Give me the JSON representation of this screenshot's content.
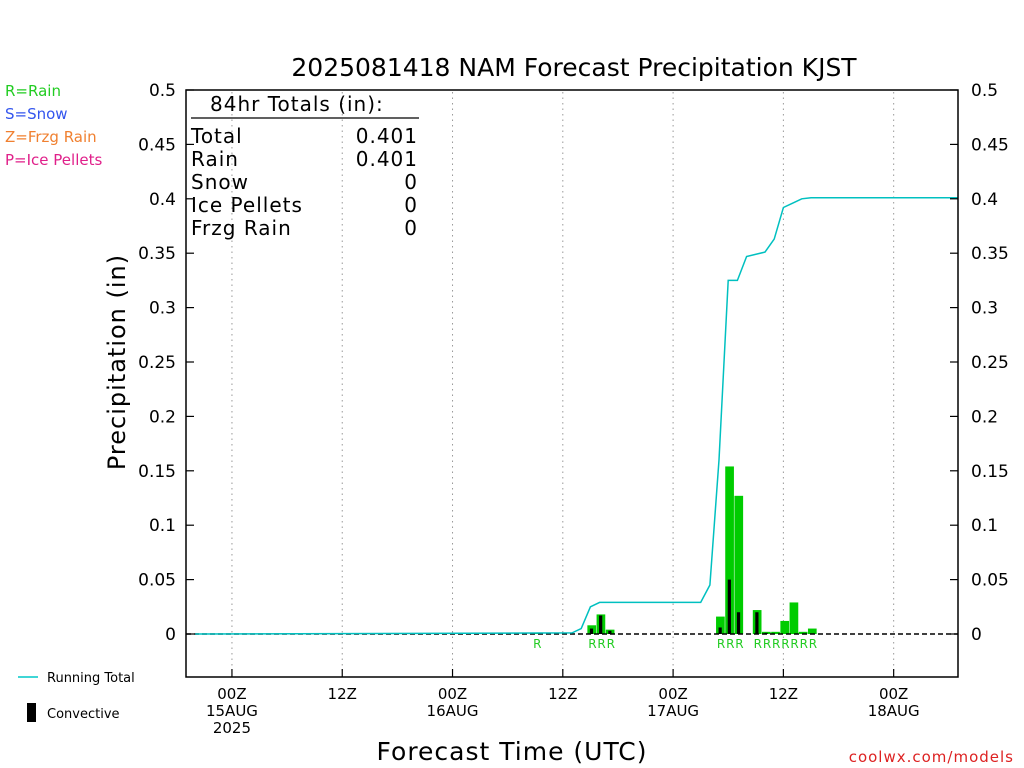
{
  "chart_data": {
    "type": "bar",
    "title": "2025081418 NAM Forecast Precipitation KJST",
    "xlabel": "Forecast Time (UTC)",
    "ylabel": "Precipitation (in)",
    "ylim": [
      0,
      0.5
    ],
    "x_hours_range": [
      -5,
      79
    ],
    "y_ticks": [
      "0",
      "0.05",
      "0.1",
      "0.15",
      "0.2",
      "0.25",
      "0.3",
      "0.35",
      "0.4",
      "0.45",
      "0.5"
    ],
    "x_ticks": [
      {
        "hour": 0,
        "lines": [
          "00Z",
          "15AUG",
          "2025"
        ]
      },
      {
        "hour": 12,
        "lines": [
          "12Z"
        ]
      },
      {
        "hour": 24,
        "lines": [
          "00Z",
          "16AUG"
        ]
      },
      {
        "hour": 36,
        "lines": [
          "12Z"
        ]
      },
      {
        "hour": 48,
        "lines": [
          "00Z",
          "17AUG"
        ]
      },
      {
        "hour": 60,
        "lines": [
          "12Z"
        ]
      },
      {
        "hour": 72,
        "lines": [
          "00Z",
          "18AUG"
        ]
      }
    ],
    "grid": "vertical dotted at each tick",
    "legend_top": [
      {
        "label": "R=Rain",
        "color": "#22cc22"
      },
      {
        "label": "S=Snow",
        "color": "#3355ee"
      },
      {
        "label": "Z=Frzg Rain",
        "color": "#f08030"
      },
      {
        "label": "P=Ice Pellets",
        "color": "#e0208a"
      }
    ],
    "legend_bottom": [
      {
        "label": "Running Total",
        "color": "#00c8c8",
        "symbol": "line"
      },
      {
        "label": "Convective",
        "color": "#000000",
        "symbol": "bar"
      }
    ],
    "totals": {
      "header": "84hr Totals (in):",
      "rows": [
        {
          "label": "Total",
          "value": "0.401"
        },
        {
          "label": "Rain",
          "value": "0.401"
        },
        {
          "label": "Snow",
          "value": "0"
        },
        {
          "label": "Ice Pellets",
          "value": "0"
        },
        {
          "label": "Frzg Rain",
          "value": "0"
        }
      ]
    },
    "series": [
      {
        "name": "Precipitation",
        "color": "#00cc00",
        "bars": [
          {
            "hour": 33,
            "value": 0.001
          },
          {
            "hour": 39,
            "value": 0.008
          },
          {
            "hour": 40,
            "value": 0.018
          },
          {
            "hour": 41,
            "value": 0.004
          },
          {
            "hour": 53,
            "value": 0.016
          },
          {
            "hour": 54,
            "value": 0.154
          },
          {
            "hour": 55,
            "value": 0.127
          },
          {
            "hour": 57,
            "value": 0.022
          },
          {
            "hour": 58,
            "value": 0.002
          },
          {
            "hour": 59,
            "value": 0.002
          },
          {
            "hour": 60,
            "value": 0.012
          },
          {
            "hour": 61,
            "value": 0.029
          },
          {
            "hour": 62,
            "value": 0.002
          },
          {
            "hour": 63,
            "value": 0.005
          }
        ]
      },
      {
        "name": "Convective",
        "color": "#000000",
        "bars": [
          {
            "hour": 39,
            "value": 0.005
          },
          {
            "hour": 40,
            "value": 0.017
          },
          {
            "hour": 41,
            "value": 0.003
          },
          {
            "hour": 53,
            "value": 0.006
          },
          {
            "hour": 54,
            "value": 0.05
          },
          {
            "hour": 55,
            "value": 0.02
          },
          {
            "hour": 57,
            "value": 0.02
          },
          {
            "hour": 58,
            "value": 0.001
          }
        ]
      },
      {
        "name": "Running Total",
        "color": "#00c0c0",
        "points": [
          [
            -4,
            0
          ],
          [
            37,
            0.001
          ],
          [
            38,
            0.005
          ],
          [
            39,
            0.025
          ],
          [
            40,
            0.029
          ],
          [
            42,
            0.029
          ],
          [
            51,
            0.029
          ],
          [
            52,
            0.045
          ],
          [
            53,
            0.16
          ],
          [
            54,
            0.325
          ],
          [
            55,
            0.325
          ],
          [
            56,
            0.347
          ],
          [
            58,
            0.351
          ],
          [
            59,
            0.363
          ],
          [
            60,
            0.392
          ],
          [
            61,
            0.396
          ],
          [
            62,
            0.4
          ],
          [
            63,
            0.401
          ],
          [
            79,
            0.401
          ]
        ]
      }
    ],
    "precip_type_labels": [
      {
        "hour": 33,
        "text": "R"
      },
      {
        "hour": 39,
        "text": "R"
      },
      {
        "hour": 40,
        "text": "R"
      },
      {
        "hour": 41,
        "text": "R"
      },
      {
        "hour": 53,
        "text": "R"
      },
      {
        "hour": 54,
        "text": "R"
      },
      {
        "hour": 55,
        "text": "R"
      },
      {
        "hour": 57,
        "text": "R"
      },
      {
        "hour": 58,
        "text": "R"
      },
      {
        "hour": 59,
        "text": "R"
      },
      {
        "hour": 60,
        "text": "R"
      },
      {
        "hour": 61,
        "text": "R"
      },
      {
        "hour": 62,
        "text": "R"
      },
      {
        "hour": 63,
        "text": "R"
      }
    ],
    "precip_label_color": "#22cc22",
    "axis_color": "#000000",
    "grid_color": "#999999"
  },
  "footer": {
    "credit": "coolwx.com/models"
  }
}
